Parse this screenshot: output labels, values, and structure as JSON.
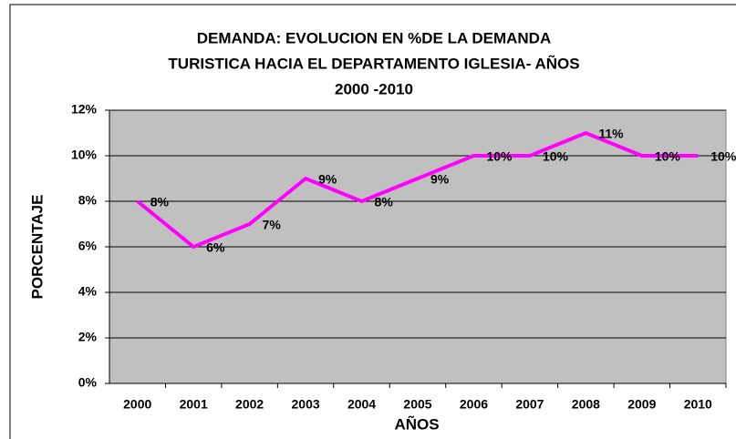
{
  "chart_data": {
    "type": "line",
    "title": [
      "DEMANDA: EVOLUCION EN %DE LA DEMANDA",
      "TURISTICA HACIA EL DEPARTAMENTO IGLESIA- AÑOS",
      "2000 -2010"
    ],
    "x_label": "AÑOS",
    "y_label": "PORCENTAJE",
    "categories": [
      "2000",
      "2001",
      "2002",
      "2003",
      "2004",
      "2005",
      "2006",
      "2007",
      "2008",
      "2009",
      "2010"
    ],
    "values": [
      8,
      6,
      7,
      9,
      8,
      9,
      10,
      10,
      11,
      10,
      10
    ],
    "value_labels": [
      "8%",
      "6%",
      "7%",
      "9%",
      "8%",
      "9%",
      "10%",
      "10%",
      "11%",
      "10%",
      "10%"
    ],
    "color": "#ff00ff",
    "ylim": [
      0,
      12
    ],
    "yticks": [
      {
        "value": 0,
        "label": "0%"
      },
      {
        "value": 2,
        "label": "2%"
      },
      {
        "value": 4,
        "label": "4%"
      },
      {
        "value": 6,
        "label": "6%"
      },
      {
        "value": 8,
        "label": "8%"
      },
      {
        "value": 10,
        "label": "10%"
      },
      {
        "value": 12,
        "label": "12%"
      }
    ],
    "grid": true,
    "plot_background": "#c0c0c0"
  }
}
